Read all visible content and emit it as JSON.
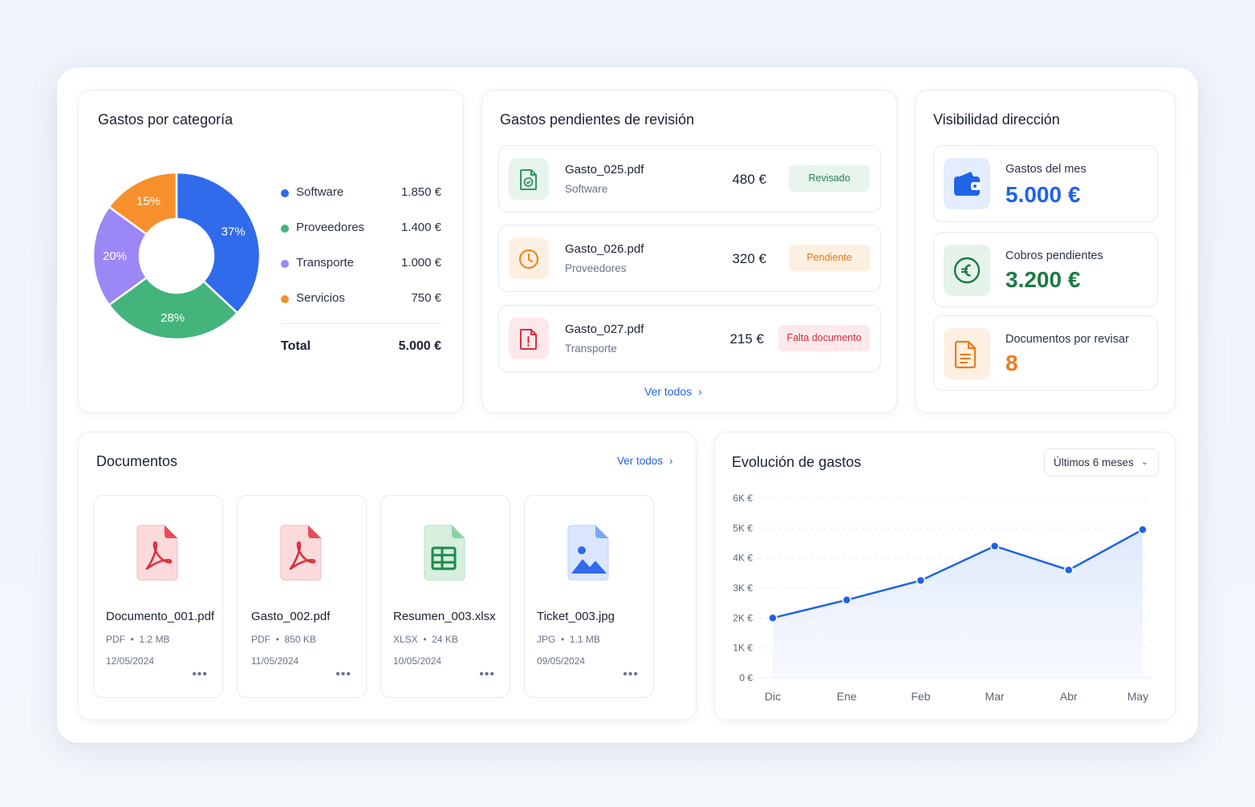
{
  "categories_card": {
    "title": "Gastos por categoría",
    "legend": [
      {
        "label": "Software",
        "value": "1.850 €",
        "color": "#2f6bea",
        "percent": "37%"
      },
      {
        "label": "Proveedores",
        "value": "1.400 €",
        "color": "#43b47c",
        "percent": "28%"
      },
      {
        "label": "Transporte",
        "value": "1.000 €",
        "color": "#9b87f5",
        "percent": "20%"
      },
      {
        "label": "Servicios",
        "value": "750 €",
        "color": "#f7902c",
        "percent": "15%"
      }
    ],
    "total_label": "Total",
    "total_value": "5.000 €"
  },
  "pending_card": {
    "title": "Gastos pendientes de revisión",
    "items": [
      {
        "name": "Gasto_025.pdf",
        "category": "Software",
        "amount": "480 €",
        "status": "Revisado",
        "icon": "document-check-icon"
      },
      {
        "name": "Gasto_026.pdf",
        "category": "Proveedores",
        "amount": "320 €",
        "status": "Pendiente",
        "icon": "clock-icon"
      },
      {
        "name": "Gasto_027.pdf",
        "category": "Transporte",
        "amount": "215 €",
        "status": "Falta documento",
        "icon": "document-alert-icon"
      }
    ],
    "see_all": "Ver todos"
  },
  "visibility_card": {
    "title": "Visibilidad dirección",
    "items": [
      {
        "label": "Gastos del mes",
        "value": "5.000 €",
        "icon": "wallet-icon",
        "color": "#1f63e6"
      },
      {
        "label": "Cobros pendientes",
        "value": "3.200 €",
        "icon": "euro-icon",
        "color": "#1d7a45"
      },
      {
        "label": "Documentos por revisar",
        "value": "8",
        "icon": "document-icon",
        "color": "#f07a1a"
      }
    ]
  },
  "documents_card": {
    "title": "Documentos",
    "see_all": "Ver todos",
    "files": [
      {
        "name": "Documento_001.pdf",
        "type": "PDF",
        "size": "1.2 MB",
        "date": "12/05/2024",
        "icon": "pdf-file-icon"
      },
      {
        "name": "Gasto_002.pdf",
        "type": "PDF",
        "size": "850 KB",
        "date": "11/05/2024",
        "icon": "pdf-file-icon"
      },
      {
        "name": "Resumen_003.xlsx",
        "type": "XLSX",
        "size": "24 KB",
        "date": "10/05/2024",
        "icon": "spreadsheet-file-icon"
      },
      {
        "name": "Ticket_003.jpg",
        "type": "JPG",
        "size": "1.1 MB",
        "date": "09/05/2024",
        "icon": "image-file-icon"
      }
    ]
  },
  "evolution_card": {
    "title": "Evolución de gastos",
    "range_select": "Últimos 6 meses"
  },
  "chart_data": [
    {
      "type": "pie",
      "categories": [
        "Software",
        "Proveedores",
        "Transporte",
        "Servicios"
      ],
      "values": [
        37,
        28,
        20,
        15
      ],
      "labels": [
        "37%",
        "28%",
        "20%",
        "15%"
      ],
      "colors": [
        "#2f6bea",
        "#43b47c",
        "#9b87f5",
        "#f7902c"
      ],
      "donut": true
    },
    {
      "type": "area",
      "categories": [
        "Dic",
        "Ene",
        "Feb",
        "Mar",
        "Abr",
        "May"
      ],
      "values": [
        2000,
        2600,
        3250,
        4400,
        3600,
        4950
      ],
      "y_ticks": [
        "0 €",
        "1K €",
        "2K €",
        "3K €",
        "4K €",
        "5K €",
        "6K €"
      ],
      "ylim": [
        0,
        6000
      ],
      "grid": true,
      "color": "#1f63e6"
    }
  ]
}
